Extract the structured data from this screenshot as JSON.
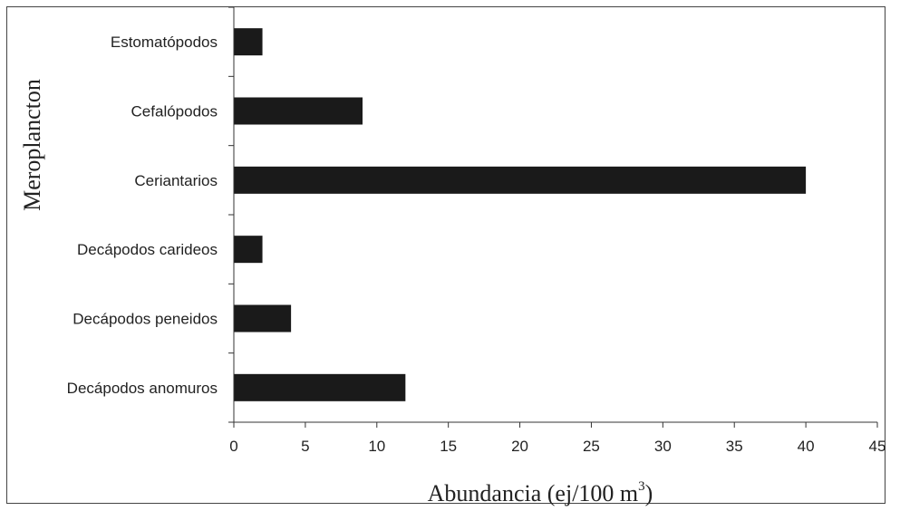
{
  "chart_data": {
    "type": "bar",
    "orientation": "horizontal",
    "categories": [
      "Estomatópodos",
      "Cefalópodos",
      "Ceriantarios",
      "Decápodos carideos",
      "Decápodos peneidos",
      "Decápodos anomuros"
    ],
    "values": [
      2,
      9,
      40,
      2,
      4,
      12
    ],
    "xlabel": "Abundancia (ej/100 m",
    "xlabel_superscript": "3",
    "xlabel_suffix": ")",
    "ylabel": "Meroplancton",
    "xlim": [
      0,
      45
    ],
    "xticks": [
      "0",
      "5",
      "10",
      "15",
      "20",
      "25",
      "30",
      "35",
      "40",
      "45"
    ],
    "bar_color": "#1a1a1a",
    "grid": false
  }
}
